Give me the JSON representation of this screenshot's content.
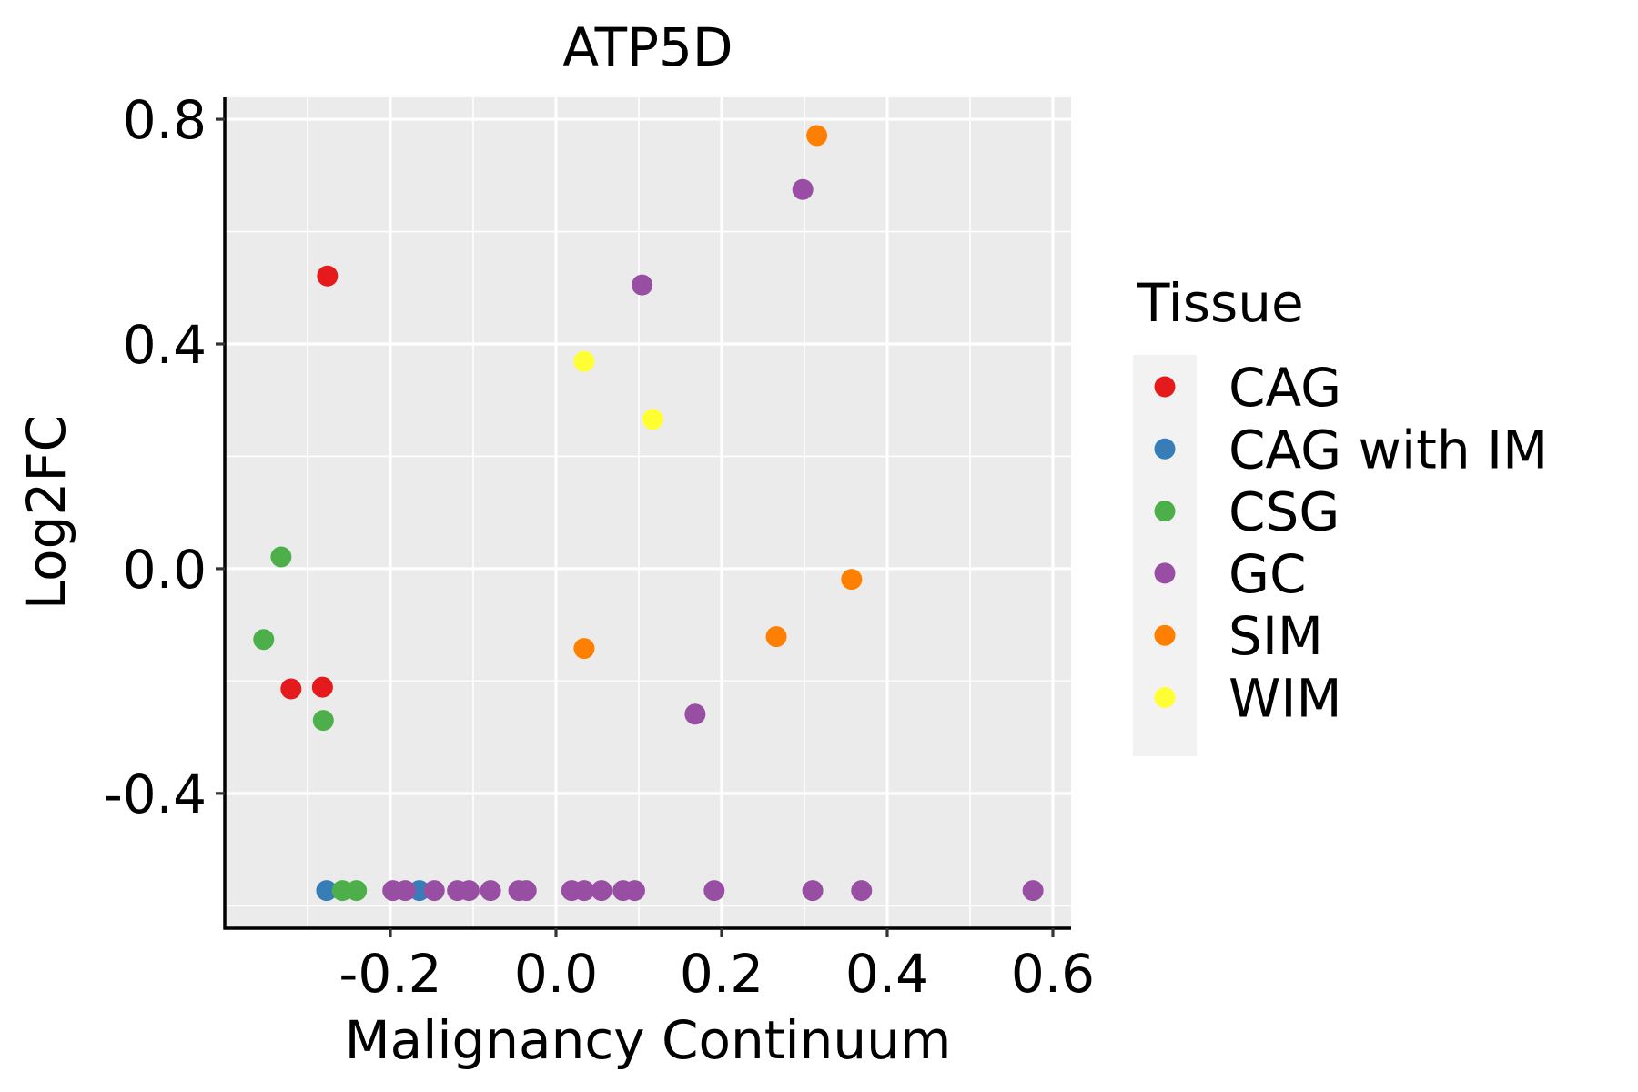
{
  "chart_data": {
    "type": "scatter",
    "title": "ATP5D",
    "xlabel": "Malignancy Continuum",
    "ylabel": "Log2FC",
    "xlim": [
      -0.4,
      0.622
    ],
    "ylim": [
      -0.64,
      0.839
    ],
    "x_ticks": [
      -0.2,
      0.0,
      0.2,
      0.4,
      0.6
    ],
    "x_tick_labels": [
      "-0.2",
      "0.0",
      "0.2",
      "0.4",
      "0.6"
    ],
    "x_minor_ticks": [
      -0.3,
      -0.1,
      0.1,
      0.3,
      0.5
    ],
    "y_ticks": [
      -0.4,
      0.0,
      0.4,
      0.8
    ],
    "y_tick_labels": [
      "-0.4",
      "0.0",
      "0.4",
      "0.8"
    ],
    "y_minor_ticks": [
      -0.6,
      -0.2,
      0.2,
      0.6
    ],
    "grid": true,
    "panel_background": "#EBEBEB",
    "grid_color": "#FFFFFF",
    "legend": {
      "title": "Tissue",
      "position": "right",
      "entries": [
        {
          "label": "CAG",
          "color": "#E41A1C"
        },
        {
          "label": "CAG with IM",
          "color": "#377EB8"
        },
        {
          "label": "CSG",
          "color": "#4DAF4A"
        },
        {
          "label": "GC",
          "color": "#984EA3"
        },
        {
          "label": "SIM",
          "color": "#FF7F00"
        },
        {
          "label": "WIM",
          "color": "#FFFF33"
        }
      ]
    },
    "series": [
      {
        "name": "CAG",
        "color": "#E41A1C",
        "points": [
          {
            "x": -0.276,
            "y": 0.521
          },
          {
            "x": -0.32,
            "y": -0.214
          },
          {
            "x": -0.282,
            "y": -0.211
          }
        ]
      },
      {
        "name": "CAG with IM",
        "color": "#377EB8",
        "points": [
          {
            "x": -0.277,
            "y": -0.573
          },
          {
            "x": -0.165,
            "y": -0.573
          }
        ]
      },
      {
        "name": "CSG",
        "color": "#4DAF4A",
        "points": [
          {
            "x": -0.332,
            "y": 0.021
          },
          {
            "x": -0.353,
            "y": -0.126
          },
          {
            "x": -0.281,
            "y": -0.27
          },
          {
            "x": -0.258,
            "y": -0.573
          },
          {
            "x": -0.241,
            "y": -0.573
          }
        ]
      },
      {
        "name": "GC",
        "color": "#984EA3",
        "points": [
          {
            "x": 0.298,
            "y": 0.675
          },
          {
            "x": 0.104,
            "y": 0.505
          },
          {
            "x": 0.168,
            "y": -0.259
          },
          {
            "x": -0.197,
            "y": -0.573
          },
          {
            "x": -0.182,
            "y": -0.573
          },
          {
            "x": -0.147,
            "y": -0.573
          },
          {
            "x": -0.119,
            "y": -0.573
          },
          {
            "x": -0.105,
            "y": -0.573
          },
          {
            "x": -0.079,
            "y": -0.573
          },
          {
            "x": -0.045,
            "y": -0.573
          },
          {
            "x": -0.036,
            "y": -0.573
          },
          {
            "x": 0.019,
            "y": -0.573
          },
          {
            "x": 0.034,
            "y": -0.573
          },
          {
            "x": 0.055,
            "y": -0.573
          },
          {
            "x": 0.081,
            "y": -0.573
          },
          {
            "x": 0.095,
            "y": -0.573
          },
          {
            "x": 0.191,
            "y": -0.573
          },
          {
            "x": 0.31,
            "y": -0.573
          },
          {
            "x": 0.369,
            "y": -0.573
          },
          {
            "x": 0.576,
            "y": -0.573
          }
        ]
      },
      {
        "name": "SIM",
        "color": "#FF7F00",
        "points": [
          {
            "x": 0.315,
            "y": 0.771
          },
          {
            "x": 0.357,
            "y": -0.019
          },
          {
            "x": 0.266,
            "y": -0.121
          },
          {
            "x": 0.034,
            "y": -0.142
          }
        ]
      },
      {
        "name": "WIM",
        "color": "#FFFF33",
        "points": [
          {
            "x": 0.034,
            "y": 0.369
          },
          {
            "x": 0.117,
            "y": 0.266
          }
        ]
      }
    ]
  }
}
